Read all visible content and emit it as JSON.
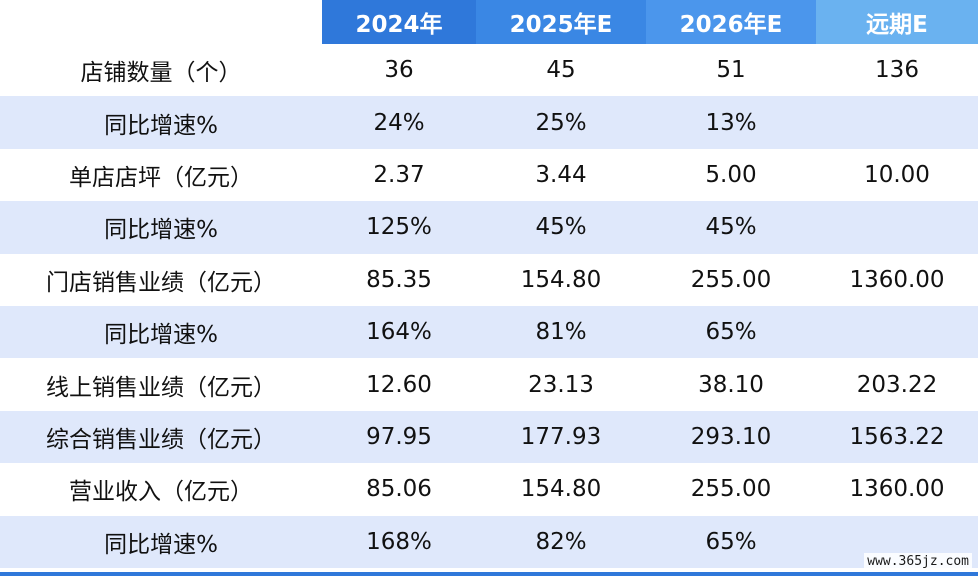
{
  "header": [
    "",
    "2024年",
    "2025年E",
    "2026年E",
    "远期E"
  ],
  "rows": [
    [
      "店铺数量（个）",
      "36",
      "45",
      "51",
      "136"
    ],
    [
      "同比增速%",
      "24%",
      "25%",
      "13%",
      ""
    ],
    [
      "单店店坪（亿元）",
      "2.37",
      "3.44",
      "5.00",
      "10.00"
    ],
    [
      "同比增速%",
      "125%",
      "45%",
      "45%",
      ""
    ],
    [
      "门店销售业绩（亿元）",
      "85.35",
      "154.80",
      "255.00",
      "1360.00"
    ],
    [
      "同比增速%",
      "164%",
      "81%",
      "65%",
      ""
    ],
    [
      "线上销售业绩（亿元）",
      "12.60",
      "23.13",
      "38.10",
      "203.22"
    ],
    [
      "综合销售业绩（亿元）",
      "97.95",
      "177.93",
      "293.10",
      "1563.22"
    ],
    [
      "营业收入（亿元）",
      "85.06",
      "154.80",
      "255.00",
      "1360.00"
    ],
    [
      "同比增速%",
      "168%",
      "82%",
      "65%",
      ""
    ]
  ],
  "watermark": "www.365jz.com",
  "colors": {
    "header_gradient": [
      "#2f78da",
      "#3a87e4",
      "#4b96ec",
      "#6ab2f0"
    ],
    "band": "#dfe8fb"
  }
}
